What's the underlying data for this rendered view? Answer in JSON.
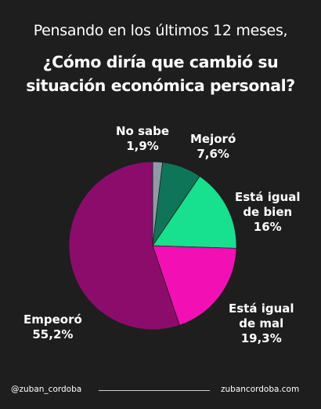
{
  "header": {
    "subtitle": "Pensando en los últimos 12 meses,",
    "title_line1": "¿Cómo diría que cambió su",
    "title_line2": "situación económica personal?"
  },
  "chart_data": {
    "type": "pie",
    "start": "12 o'clock",
    "direction": "clockwise",
    "slices": [
      {
        "label_line1": "No sabe",
        "label_line2": "",
        "value_text": "1,9%",
        "value": 1.9,
        "color": "#8f9aa8"
      },
      {
        "label_line1": "Mejoró",
        "label_line2": "",
        "value_text": "7,6%",
        "value": 7.6,
        "color": "#0f7558"
      },
      {
        "label_line1": "Está igual",
        "label_line2": "de bien",
        "value_text": "16%",
        "value": 16,
        "color": "#17e08f"
      },
      {
        "label_line1": "Está igual",
        "label_line2": "de mal",
        "value_text": "19,3%",
        "value": 19.3,
        "color": "#f20fb4"
      },
      {
        "label_line1": "Empeoró",
        "label_line2": "",
        "value_text": "55,2%",
        "value": 55.2,
        "color": "#8c0c6b"
      }
    ]
  },
  "footer": {
    "handle": "@zuban_cordoba",
    "website": "zubancordoba.com"
  }
}
